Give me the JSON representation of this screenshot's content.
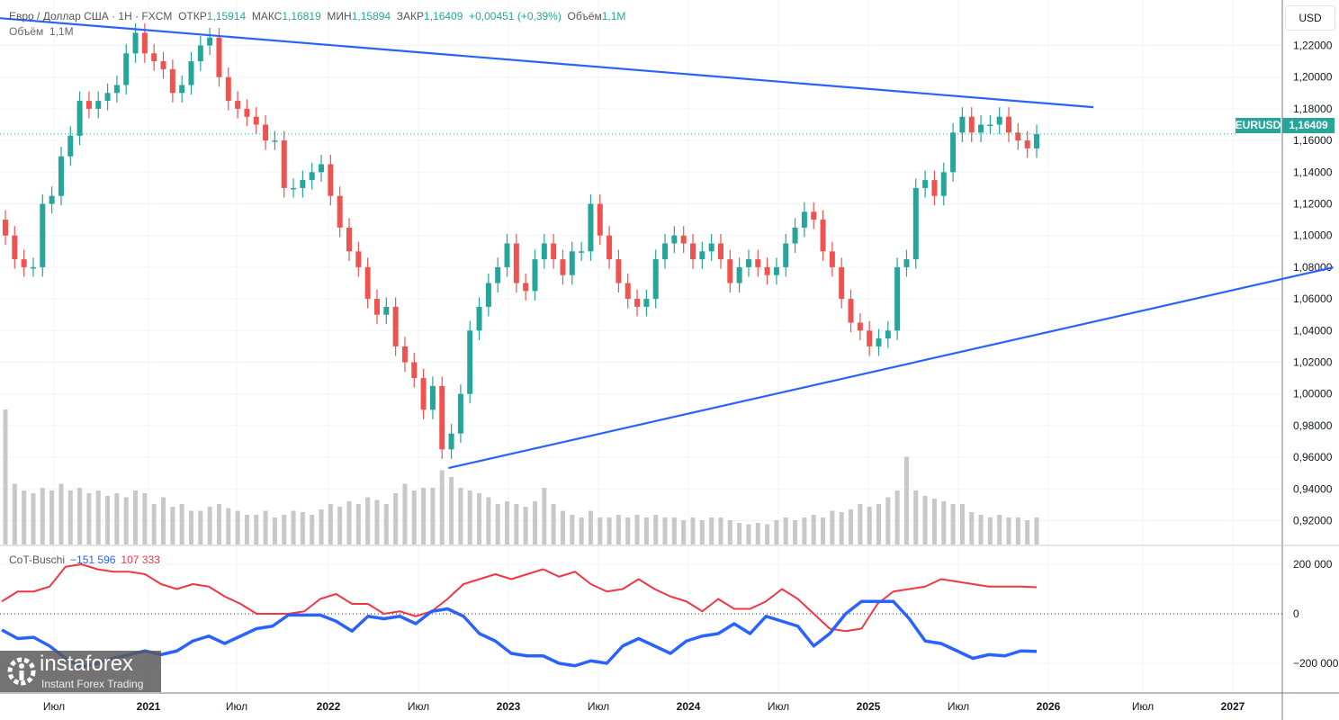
{
  "header": {
    "symbol_title": "Евро / Доллар США · 1Н · FXCM",
    "open_label": "ОТКР",
    "open": "1,15914",
    "high_label": "МАКС",
    "high": "1,16819",
    "low_label": "МИН",
    "low": "1,15894",
    "close_label": "ЗАКР",
    "close": "1,16409",
    "change": "+0,00451 (+0,39%)",
    "volume_label": "Объём",
    "volume": "1,1M"
  },
  "volume_legend": {
    "label": "Объём",
    "value": "1,1M"
  },
  "price_axis": {
    "currency": "USD",
    "ticks": [
      "1,22000",
      "1,20000",
      "1,18000",
      "1,16000",
      "1,14000",
      "1,12000",
      "1,10000",
      "1,08000",
      "1,06000",
      "1,04000",
      "1,02000",
      "1,00000",
      "0,98000",
      "0,96000",
      "0,94000",
      "0,92000"
    ],
    "last_price_symbol": "EURUSD",
    "last_price": "1,16409"
  },
  "time_axis": {
    "ticks": [
      "Июл",
      "2021",
      "Июл",
      "2022",
      "Июл",
      "2023",
      "Июл",
      "2024",
      "Июл",
      "2025",
      "Июл",
      "2026",
      "Июл",
      "2027"
    ]
  },
  "indicator": {
    "name": "CoT-Buschi",
    "blue_value": "−151 596",
    "red_value": "107 333",
    "ticks": [
      "200 000",
      "0",
      "−200 000"
    ]
  },
  "logo": {
    "name": "instaforex",
    "tagline": "Instant Forex Trading"
  },
  "colors": {
    "up": "#26a69a",
    "down": "#ef5350",
    "trendline": "#2962ff",
    "cot_blue": "#2962ff",
    "cot_red": "#f23645",
    "grid": "#f0f3fa",
    "volume": "#c8c8c8"
  },
  "chart_data": [
    {
      "type": "candlestick",
      "title": "Евро / Доллар США · 1Н · FXCM",
      "ylim": [
        0.905,
        1.245
      ],
      "close": [
        1.1,
        1.085,
        1.08,
        1.08,
        1.12,
        1.125,
        1.15,
        1.163,
        1.185,
        1.18,
        1.185,
        1.19,
        1.195,
        1.215,
        1.228,
        1.215,
        1.21,
        1.205,
        1.19,
        1.195,
        1.21,
        1.22,
        1.225,
        1.2,
        1.185,
        1.18,
        1.175,
        1.17,
        1.16,
        1.16,
        1.13,
        1.13,
        1.135,
        1.14,
        1.145,
        1.125,
        1.105,
        1.09,
        1.08,
        1.06,
        1.05,
        1.055,
        1.03,
        1.02,
        1.01,
        0.99,
        1.005,
        0.965,
        0.975,
        1.0,
        1.04,
        1.055,
        1.07,
        1.08,
        1.095,
        1.07,
        1.065,
        1.085,
        1.095,
        1.085,
        1.075,
        1.09,
        1.09,
        1.12,
        1.1,
        1.085,
        1.07,
        1.06,
        1.055,
        1.06,
        1.085,
        1.095,
        1.1,
        1.095,
        1.085,
        1.09,
        1.095,
        1.085,
        1.07,
        1.08,
        1.085,
        1.08,
        1.075,
        1.08,
        1.095,
        1.105,
        1.115,
        1.11,
        1.09,
        1.08,
        1.06,
        1.045,
        1.04,
        1.03,
        1.035,
        1.04,
        1.08,
        1.085,
        1.13,
        1.135,
        1.125,
        1.14,
        1.165,
        1.175,
        1.165,
        1.17,
        1.17,
        1.175,
        1.165,
        1.16,
        1.155,
        1.164
      ],
      "volume_relative": [
        1.0,
        0.45,
        0.4,
        0.38,
        0.42,
        0.4,
        0.45,
        0.4,
        0.42,
        0.38,
        0.4,
        0.36,
        0.38,
        0.35,
        0.4,
        0.38,
        0.3,
        0.35,
        0.28,
        0.3,
        0.25,
        0.25,
        0.28,
        0.3,
        0.27,
        0.25,
        0.22,
        0.22,
        0.25,
        0.2,
        0.22,
        0.25,
        0.24,
        0.22,
        0.26,
        0.3,
        0.28,
        0.32,
        0.3,
        0.35,
        0.33,
        0.3,
        0.38,
        0.45,
        0.4,
        0.42,
        0.42,
        0.55,
        0.5,
        0.42,
        0.4,
        0.38,
        0.35,
        0.3,
        0.32,
        0.3,
        0.28,
        0.32,
        0.42,
        0.3,
        0.25,
        0.22,
        0.2,
        0.25,
        0.2,
        0.2,
        0.22,
        0.2,
        0.22,
        0.2,
        0.22,
        0.2,
        0.2,
        0.18,
        0.2,
        0.18,
        0.2,
        0.2,
        0.18,
        0.16,
        0.15,
        0.16,
        0.15,
        0.18,
        0.2,
        0.18,
        0.2,
        0.22,
        0.2,
        0.25,
        0.24,
        0.26,
        0.3,
        0.28,
        0.3,
        0.35,
        0.4,
        0.65,
        0.4,
        0.36,
        0.34,
        0.32,
        0.3,
        0.3,
        0.24,
        0.22,
        0.2,
        0.22,
        0.2,
        0.2,
        0.18,
        0.2
      ]
    },
    {
      "type": "line",
      "title": "CoT-Buschi",
      "ylim": [
        -270000,
        250000
      ],
      "series": [
        {
          "values": [
            -65000,
            -100000,
            -95000,
            -130000,
            -180000,
            -215000,
            -200000,
            -180000,
            -165000,
            -150000,
            -165000,
            -150000,
            -110000,
            -90000,
            -120000,
            -90000,
            -60000,
            -50000,
            -5000,
            -5000,
            -5000,
            -30000,
            -70000,
            -10000,
            -20000,
            -10000,
            -40000,
            10000,
            20000,
            -10000,
            -80000,
            -110000,
            -160000,
            -170000,
            -170000,
            -200000,
            -210000,
            -190000,
            -200000,
            -130000,
            -100000,
            -130000,
            -160000,
            -110000,
            -90000,
            -80000,
            -40000,
            -80000,
            -10000,
            -30000,
            -50000,
            -130000,
            -80000,
            0,
            50000,
            50000,
            50000,
            -20000,
            -110000,
            -120000,
            -150000,
            -180000,
            -165000,
            -170000,
            -150000,
            -151596
          ]
        },
        {
          "values": [
            50000,
            90000,
            90000,
            110000,
            190000,
            200000,
            180000,
            170000,
            170000,
            160000,
            120000,
            100000,
            120000,
            110000,
            70000,
            40000,
            0,
            0,
            0,
            10000,
            60000,
            80000,
            40000,
            40000,
            0,
            10000,
            -10000,
            10000,
            60000,
            120000,
            140000,
            160000,
            140000,
            160000,
            180000,
            150000,
            170000,
            120000,
            90000,
            100000,
            140000,
            100000,
            70000,
            50000,
            10000,
            60000,
            20000,
            20000,
            50000,
            100000,
            60000,
            0,
            -60000,
            -70000,
            -60000,
            40000,
            90000,
            100000,
            110000,
            140000,
            130000,
            120000,
            110000,
            110000,
            110000,
            107333
          ]
        }
      ]
    }
  ],
  "trendlines": [
    {
      "from": [
        "2020-03",
        1.2373
      ],
      "to": [
        "2026-04",
        1.181
      ]
    },
    {
      "from": [
        "2022-09",
        0.9532
      ],
      "to": [
        "2027-08",
        1.0799
      ]
    }
  ]
}
